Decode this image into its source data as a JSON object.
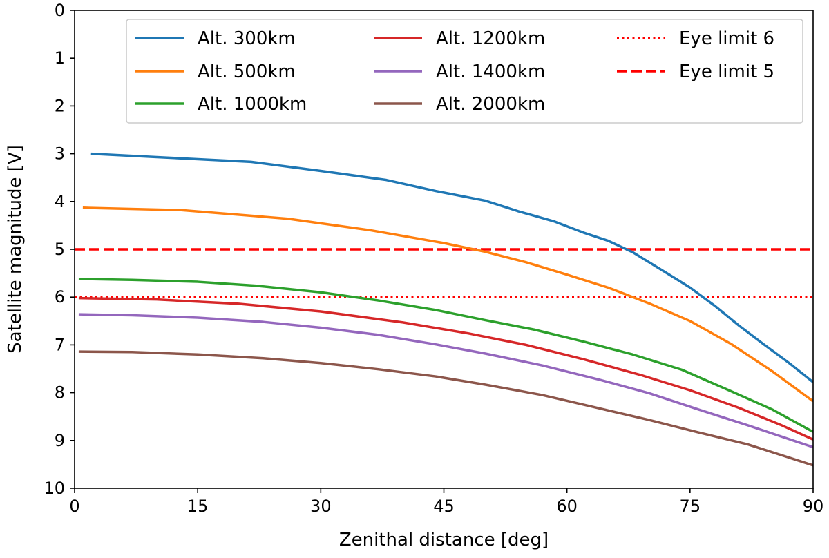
{
  "chart_data": {
    "type": "line",
    "title": "",
    "xlabel": "Zenithal distance [deg]",
    "ylabel": "Satellite magnitude [V]",
    "xlim": [
      0,
      90
    ],
    "ylim": [
      10,
      0
    ],
    "y_inverted": true,
    "xticks": [
      0,
      15,
      30,
      45,
      60,
      75,
      90
    ],
    "yticks": [
      0,
      1,
      2,
      3,
      4,
      5,
      6,
      7,
      8,
      9,
      10
    ],
    "grid": false,
    "legend_position": "top-right",
    "series": [
      {
        "name": "Alt. 300km",
        "color": "#1f77b4",
        "style": "solid",
        "x": [
          2,
          10,
          21.5,
          30,
          38,
          44,
          50,
          54,
          58.5,
          62,
          65,
          68,
          72,
          75,
          78,
          81,
          84,
          87,
          90
        ],
        "y": [
          3.0,
          3.07,
          3.17,
          3.36,
          3.55,
          3.78,
          3.98,
          4.2,
          4.42,
          4.65,
          4.82,
          5.06,
          5.48,
          5.8,
          6.18,
          6.6,
          6.99,
          7.37,
          7.78
        ]
      },
      {
        "name": "Alt. 500km",
        "color": "#ff7f0e",
        "style": "solid",
        "x": [
          1,
          13,
          26,
          36,
          45,
          50,
          55,
          60,
          65,
          70,
          75,
          80,
          85,
          90
        ],
        "y": [
          4.13,
          4.18,
          4.36,
          4.6,
          4.87,
          5.05,
          5.27,
          5.53,
          5.8,
          6.13,
          6.5,
          6.98,
          7.55,
          8.18
        ]
      },
      {
        "name": "Alt. 1000km",
        "color": "#2ca02c",
        "style": "solid",
        "x": [
          0.5,
          7,
          15,
          22,
          30,
          37,
          44,
          50,
          56,
          62,
          68,
          74,
          80,
          85,
          90
        ],
        "y": [
          5.62,
          5.64,
          5.68,
          5.76,
          5.9,
          6.07,
          6.27,
          6.48,
          6.68,
          6.93,
          7.2,
          7.52,
          7.97,
          8.35,
          8.82
        ]
      },
      {
        "name": "Alt. 1200km",
        "color": "#d62728",
        "style": "solid",
        "x": [
          0.5,
          10,
          20,
          30,
          40,
          48,
          55,
          62,
          69,
          75,
          81,
          86,
          90
        ],
        "y": [
          6.02,
          6.05,
          6.14,
          6.3,
          6.53,
          6.76,
          7.0,
          7.3,
          7.63,
          7.95,
          8.32,
          8.67,
          8.98
        ]
      },
      {
        "name": "Alt. 1400km",
        "color": "#9467bd",
        "style": "solid",
        "x": [
          0.5,
          7,
          15,
          23,
          30,
          37,
          44,
          50,
          57,
          64,
          70,
          76,
          82,
          90
        ],
        "y": [
          6.36,
          6.38,
          6.43,
          6.52,
          6.64,
          6.79,
          6.99,
          7.18,
          7.43,
          7.73,
          8.01,
          8.35,
          8.68,
          9.14
        ]
      },
      {
        "name": "Alt. 2000km",
        "color": "#8c564b",
        "style": "solid",
        "x": [
          0.5,
          7,
          15,
          23,
          30,
          37,
          44,
          50,
          57,
          64,
          70,
          76,
          82,
          90
        ],
        "y": [
          7.14,
          7.15,
          7.2,
          7.28,
          7.38,
          7.51,
          7.66,
          7.83,
          8.05,
          8.33,
          8.57,
          8.83,
          9.08,
          9.52
        ]
      }
    ],
    "reference_lines": [
      {
        "name": "Eye limit 6",
        "y": 6,
        "color": "#ff0000",
        "style": "dotted"
      },
      {
        "name": "Eye limit 5",
        "y": 5,
        "color": "#ff0000",
        "style": "dashed"
      }
    ],
    "legend_columns": [
      [
        "Alt. 300km",
        "Alt. 500km",
        "Alt. 1000km"
      ],
      [
        "Alt. 1200km",
        "Alt. 1400km",
        "Alt. 2000km"
      ],
      [
        "Eye limit 6",
        "Eye limit 5"
      ]
    ]
  }
}
